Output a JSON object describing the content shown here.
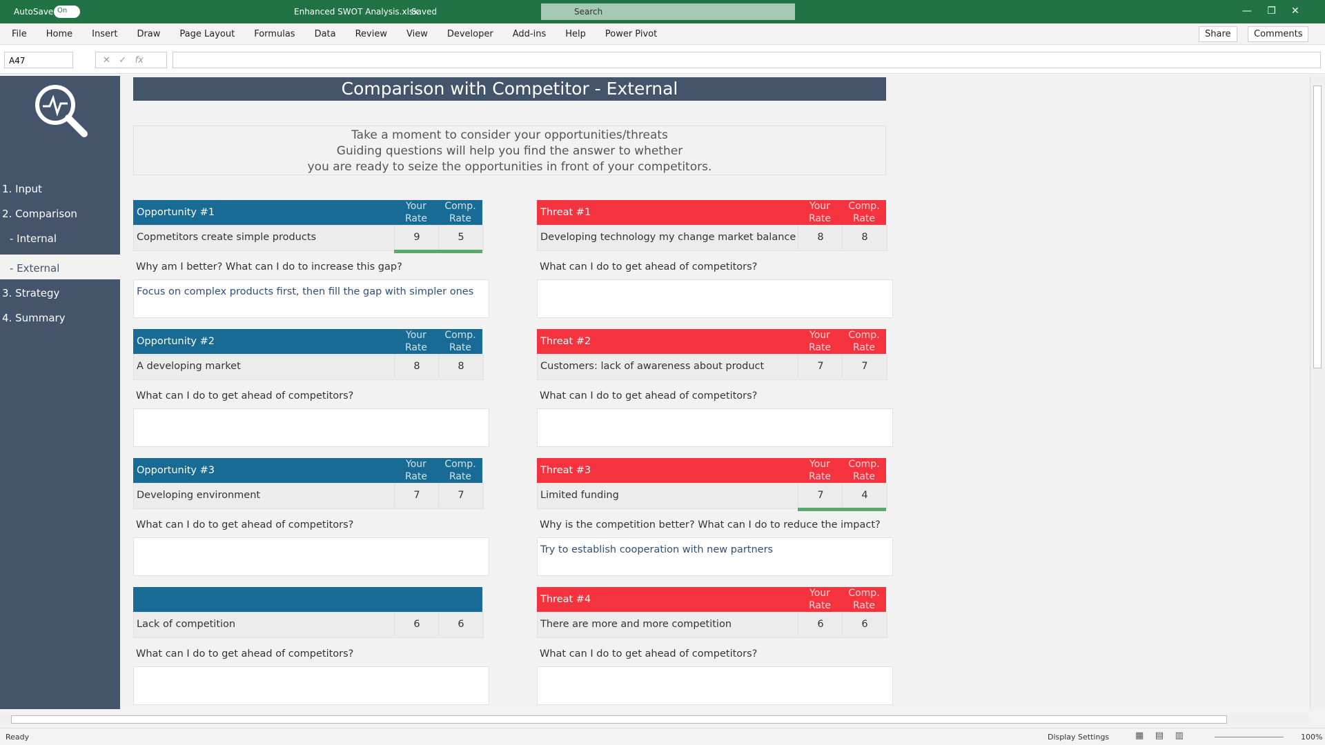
{
  "titlebar": {
    "autosave": "AutoSave",
    "toggle": "On",
    "filename": "Enhanced SWOT Analysis.xlsx",
    "status": "Saved",
    "search": "Search"
  },
  "ribbon": {
    "tabs": [
      "File",
      "Home",
      "Insert",
      "Draw",
      "Page Layout",
      "Formulas",
      "Data",
      "Review",
      "View",
      "Developer",
      "Add-ins",
      "Help",
      "Power Pivot"
    ],
    "share": "Share",
    "comments": "Comments"
  },
  "formula_bar": {
    "name_box": "A47"
  },
  "sidebar": {
    "items": [
      "1. Input",
      "2. Comparison",
      "- Internal",
      "- External",
      "3. Strategy",
      "4. Summary"
    ]
  },
  "sheet": {
    "title": "Comparison with Competitor - External",
    "intro": [
      "Take a moment to consider your opportunities/threats",
      "Guiding questions will help you find the answer to whether",
      "you are ready to seize the opportunities in front of your competitors."
    ],
    "opportunities": [
      {
        "label": "Opportunity #1",
        "headers": [
          "Your Rate",
          "Comp. Rate"
        ],
        "item": "Copmetitors create simple products",
        "your": 9,
        "comp": 5,
        "question": "Why am I better? What can I do to increase this gap?",
        "answer": "Focus on complex products first, then fill the gap with simpler ones"
      },
      {
        "label": "Opportunity #2",
        "headers": [
          "Your Rate",
          "Comp. Rate"
        ],
        "item": "A developing market",
        "your": 8,
        "comp": 8,
        "question": "What can I do to get ahead of competitors?"
      },
      {
        "label": "Opportunity #3",
        "headers": [
          "Your Rate",
          "Comp. Rate"
        ],
        "item": "Developing environment",
        "your": 7,
        "comp": 7,
        "question": "What can I do to get ahead of competitors?"
      },
      {
        "item": "Lack of competition",
        "your": 6,
        "comp": 6,
        "question": "What can I do to get ahead of competitors?"
      }
    ],
    "threats": [
      {
        "label": "Threat #1",
        "headers": [
          "Your Rate",
          "Comp. Rate"
        ],
        "item": "Developing technology my change market balance",
        "your": 8,
        "comp": 8,
        "question": "What can I do to get ahead of competitors?"
      },
      {
        "label": "Threat #2",
        "headers": [
          "Your Rate",
          "Comp. Rate"
        ],
        "item": "Customers: lack of awareness about product",
        "your": 7,
        "comp": 7,
        "question": "What can I do to get ahead of competitors?"
      },
      {
        "label": "Threat #3",
        "headers": [
          "Your Rate",
          "Comp. Rate"
        ],
        "item": "Limited funding",
        "your": 7,
        "comp": 4,
        "question": "Why is the competition better? What can I do to reduce the impact?",
        "answer": "Try to establish cooperation with new partners"
      },
      {
        "label": "Threat #4",
        "headers": [
          "Your Rate",
          "Comp. Rate"
        ],
        "item": "There are more and more competition",
        "your": 6,
        "comp": 6,
        "question": "What can I do to get ahead of competitors?"
      }
    ]
  },
  "statusbar": {
    "ready": "Ready",
    "display": "Display Settings",
    "zoom": "100%"
  }
}
